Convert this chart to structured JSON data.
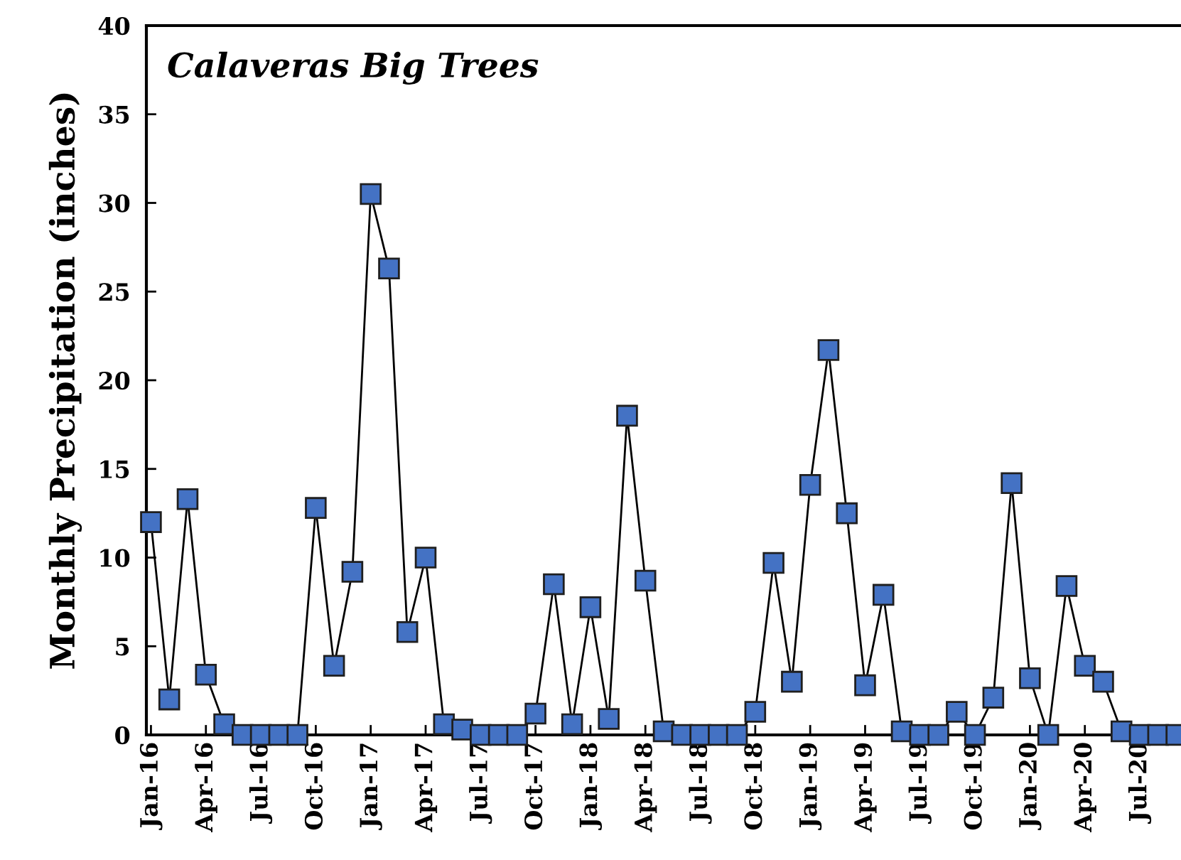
{
  "chart_data": {
    "type": "line",
    "title": "Calaveras Big Trees",
    "ylabel": "Monthly Precipitation (inches)",
    "categories": [
      "Jan-16",
      null,
      null,
      "Apr-16",
      null,
      null,
      "Jul-16",
      null,
      null,
      "Oct-16",
      null,
      null,
      "Jan-17",
      null,
      null,
      "Apr-17",
      null,
      null,
      "Jul-17",
      null,
      null,
      "Oct-17",
      null,
      null,
      "Jan-18",
      null,
      null,
      "Apr-18",
      null,
      null,
      "Jul-18",
      null,
      null,
      "Oct-18",
      null,
      null,
      "Jan-19",
      null,
      null,
      "Apr-19",
      null,
      null,
      "Jul-19",
      null,
      null,
      "Oct-19",
      null,
      null,
      "Jan-20",
      null,
      null,
      "Apr-20",
      null,
      null,
      "Jul-20",
      null,
      null
    ],
    "series": [
      {
        "color": "#4472c4",
        "values": [
          12.0,
          2.0,
          13.3,
          3.4,
          0.6,
          0,
          0,
          0,
          0,
          12.8,
          3.9,
          9.2,
          30.5,
          26.3,
          5.8,
          10.0,
          0.6,
          0.3,
          0,
          0,
          0,
          1.2,
          8.5,
          0.6,
          7.2,
          0.9,
          18.0,
          8.7,
          0.2,
          0,
          0,
          0,
          0,
          1.3,
          9.7,
          3.0,
          14.1,
          21.7,
          12.5,
          2.8,
          7.9,
          0.2,
          0,
          0,
          1.3,
          0,
          2.1,
          14.2,
          3.2,
          0,
          8.4,
          3.9,
          3.0,
          0.2,
          0,
          0,
          0
        ]
      }
    ],
    "ylim": [
      0,
      40
    ],
    "yticks": [
      0,
      5,
      10,
      15,
      20,
      25,
      30,
      35,
      40
    ],
    "marker": "square",
    "line_style": "solid",
    "grid": false,
    "legend": false
  }
}
